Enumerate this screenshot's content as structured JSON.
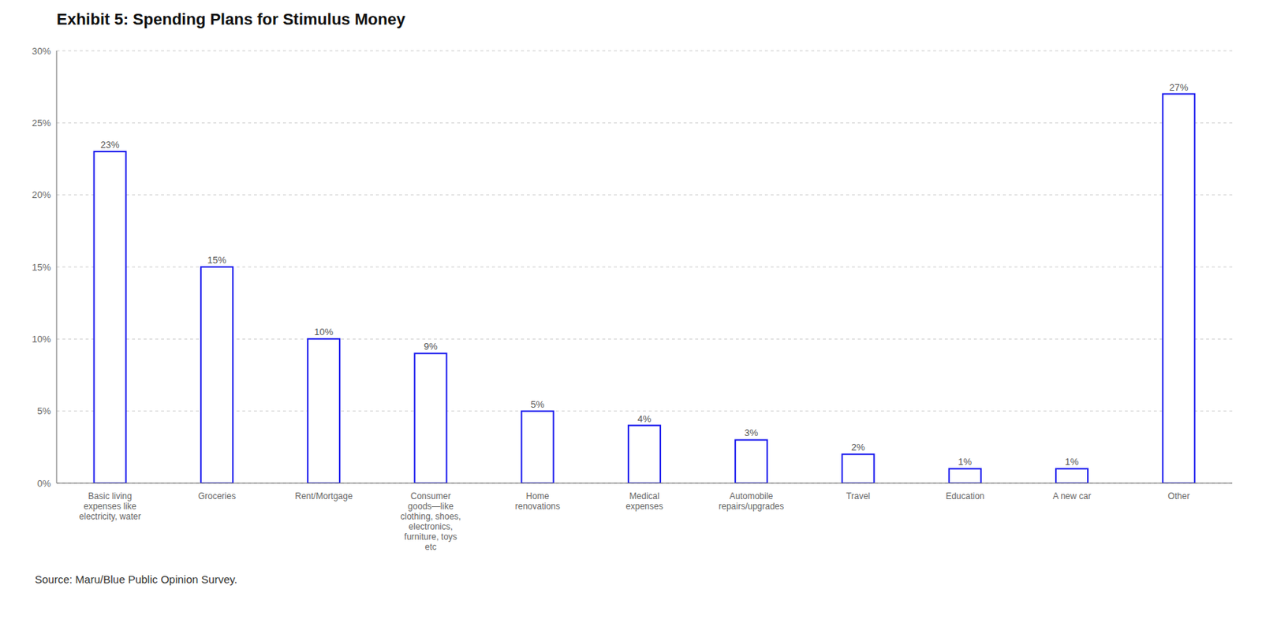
{
  "chart_data": {
    "type": "bar",
    "title": "Exhibit 5: Spending Plans for Stimulus Money",
    "source": "Source: Maru/Blue Public Opinion Survey.",
    "categories": [
      "Basic living\nexpenses like\nelectricity, water",
      "Groceries",
      "Rent/Mortgage",
      "Consumer\ngoods—like\nclothing, shoes,\nelectronics,\nfurniture, toys\netc",
      "Home\nrenovations",
      "Medical\nexpenses",
      "Automobile\nrepairs/upgrades",
      "Travel",
      "Education",
      "A new car",
      "Other"
    ],
    "values": [
      23,
      15,
      10,
      9,
      5,
      4,
      3,
      2,
      1,
      1,
      27
    ],
    "value_labels": [
      "23%",
      "15%",
      "10%",
      "9%",
      "5%",
      "4%",
      "3%",
      "2%",
      "1%",
      "1%",
      "27%"
    ],
    "data_labels": true,
    "color": "#1a1aee",
    "ylim": [
      0,
      30
    ],
    "yticks": [
      {
        "value": 0,
        "label": "0%"
      },
      {
        "value": 5,
        "label": "5%"
      },
      {
        "value": 10,
        "label": "10%"
      },
      {
        "value": 15,
        "label": "15%"
      },
      {
        "value": 20,
        "label": "20%"
      },
      {
        "value": 25,
        "label": "25%"
      },
      {
        "value": 30,
        "label": "30%"
      }
    ],
    "grid": true
  }
}
